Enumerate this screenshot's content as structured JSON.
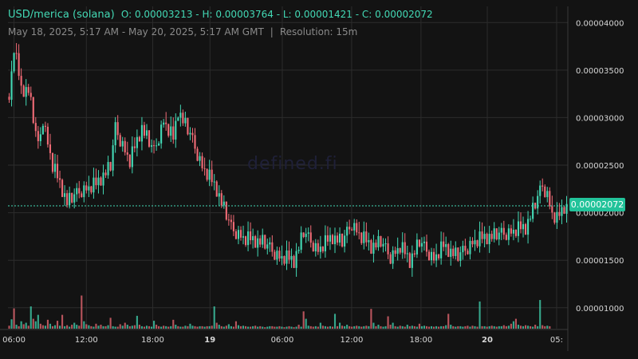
{
  "header": {
    "pair": "USD/merica (solana)",
    "open_label": "O:",
    "open": "0.00003213",
    "high_label": "H:",
    "high": "0.00003764",
    "low_label": "L:",
    "low": "0.00001421",
    "close_label": "C:",
    "close": "0.00002072",
    "range": "May 18, 2025, 5:17 AM - May 20, 2025, 5:17 AM GMT",
    "separator": "|",
    "resolution": "Resolution: 15m"
  },
  "watermark": "defined.fi",
  "current_price_label": "0.00002072",
  "colors": {
    "up": "#43d9b5",
    "down": "#f06b76",
    "grid": "#2c2c2c",
    "axis_text": "#d6d6d6",
    "tag": "#22c39a"
  },
  "chart_data": {
    "type": "candlestick",
    "y_ticks": [
      "0.00004000",
      "0.00003500",
      "0.00003000",
      "0.00002500",
      "0.00002000",
      "0.00001500",
      "0.00001000"
    ],
    "x_ticks": [
      "06:00",
      "12:00",
      "18:00",
      "19",
      "06:00",
      "12:00",
      "18:00",
      "20",
      "05:"
    ],
    "ylim": [
      7.8e-06,
      4.17e-05
    ],
    "current_price": 2.072e-05,
    "segments": [
      [
        0,
        3.22e-05
      ],
      [
        2,
        3.75e-05
      ],
      [
        5,
        3.3e-05
      ],
      [
        8,
        3.3e-05
      ],
      [
        12,
        2.7e-05
      ],
      [
        14,
        3e-05
      ],
      [
        18,
        2.5e-05
      ],
      [
        24,
        2.12e-05
      ],
      [
        30,
        2.25e-05
      ],
      [
        36,
        2.3e-05
      ],
      [
        42,
        2.5e-05
      ],
      [
        44,
        2.9e-05
      ],
      [
        50,
        2.55e-05
      ],
      [
        55,
        2.9e-05
      ],
      [
        60,
        2.65e-05
      ],
      [
        64,
        2.98e-05
      ],
      [
        68,
        2.78e-05
      ],
      [
        70,
        3.08e-05
      ],
      [
        75,
        2.83e-05
      ],
      [
        80,
        2.5e-05
      ],
      [
        86,
        2.25e-05
      ],
      [
        92,
        1.85e-05
      ],
      [
        98,
        1.73e-05
      ],
      [
        105,
        1.7e-05
      ],
      [
        112,
        1.55e-05
      ],
      [
        118,
        1.5e-05
      ],
      [
        122,
        1.8e-05
      ],
      [
        128,
        1.62e-05
      ],
      [
        134,
        1.75e-05
      ],
      [
        138,
        1.7e-05
      ],
      [
        142,
        1.9e-05
      ],
      [
        146,
        1.75e-05
      ],
      [
        150,
        1.65e-05
      ],
      [
        154,
        1.7e-05
      ],
      [
        158,
        1.55e-05
      ],
      [
        162,
        1.65e-05
      ],
      [
        166,
        1.5e-05
      ],
      [
        170,
        1.7e-05
      ],
      [
        176,
        1.53e-05
      ],
      [
        180,
        1.65e-05
      ],
      [
        186,
        1.55e-05
      ],
      [
        192,
        1.7e-05
      ],
      [
        198,
        1.75e-05
      ],
      [
        206,
        1.8e-05
      ],
      [
        214,
        1.85e-05
      ],
      [
        218,
        2.1e-05
      ],
      [
        221,
        2.3e-05
      ],
      [
        223,
        2.2e-05
      ],
      [
        225,
        2e-05
      ],
      [
        227,
        1.93e-05
      ],
      [
        230,
        2.07e-05
      ]
    ],
    "volumes": [
      0.06,
      0.19,
      0.41,
      0.08,
      0.05,
      0.15,
      0.09,
      0.12,
      0.06,
      0.45,
      0.2,
      0.15,
      0.28,
      0.1,
      0.07,
      0.06,
      0.18,
      0.1,
      0.05,
      0.07,
      0.16,
      0.06,
      0.28,
      0.05,
      0.07,
      0.04,
      0.08,
      0.12,
      0.08,
      0.06,
      0.67,
      0.15,
      0.09,
      0.07,
      0.05,
      0.04,
      0.1,
      0.06,
      0.08,
      0.05,
      0.05,
      0.07,
      0.22,
      0.05,
      0.04,
      0.04,
      0.09,
      0.06,
      0.12,
      0.08,
      0.05,
      0.06,
      0.07,
      0.26,
      0.08,
      0.05,
      0.04,
      0.06,
      0.05,
      0.04,
      0.16,
      0.08,
      0.05,
      0.04,
      0.06,
      0.05,
      0.04,
      0.05,
      0.18,
      0.08,
      0.05,
      0.04,
      0.04,
      0.06,
      0.05,
      0.1,
      0.06,
      0.05,
      0.04,
      0.05,
      0.05,
      0.04,
      0.05,
      0.05,
      0.06,
      0.45,
      0.12,
      0.08,
      0.05,
      0.04,
      0.06,
      0.09,
      0.05,
      0.04,
      0.15,
      0.07,
      0.05,
      0.06,
      0.05,
      0.04,
      0.04,
      0.05,
      0.06,
      0.04,
      0.05,
      0.04,
      0.03,
      0.04,
      0.05,
      0.05,
      0.04,
      0.04,
      0.05,
      0.04,
      0.03,
      0.04,
      0.05,
      0.04,
      0.03,
      0.04,
      0.08,
      0.04,
      0.35,
      0.2,
      0.06,
      0.05,
      0.04,
      0.05,
      0.04,
      0.12,
      0.06,
      0.05,
      0.04,
      0.05,
      0.04,
      0.3,
      0.05,
      0.12,
      0.06,
      0.05,
      0.08,
      0.05,
      0.04,
      0.05,
      0.06,
      0.05,
      0.04,
      0.05,
      0.06,
      0.05,
      0.4,
      0.12,
      0.05,
      0.08,
      0.05,
      0.04,
      0.05,
      0.25,
      0.08,
      0.12,
      0.05,
      0.04,
      0.06,
      0.05,
      0.04,
      0.08,
      0.05,
      0.06,
      0.05,
      0.04,
      0.1,
      0.05,
      0.06,
      0.05,
      0.04,
      0.05,
      0.04,
      0.05,
      0.04,
      0.05,
      0.05,
      0.07,
      0.3,
      0.08,
      0.05,
      0.04,
      0.05,
      0.05,
      0.04,
      0.05,
      0.06,
      0.04,
      0.06,
      0.05,
      0.04,
      0.55,
      0.05,
      0.05,
      0.04,
      0.05,
      0.06,
      0.05,
      0.04,
      0.05,
      0.05,
      0.07,
      0.05,
      0.06,
      0.1,
      0.15,
      0.2,
      0.08,
      0.06,
      0.05,
      0.07,
      0.06,
      0.05,
      0.04,
      0.08,
      0.05,
      0.58,
      0.07,
      0.05,
      0.06,
      0.05
    ]
  }
}
